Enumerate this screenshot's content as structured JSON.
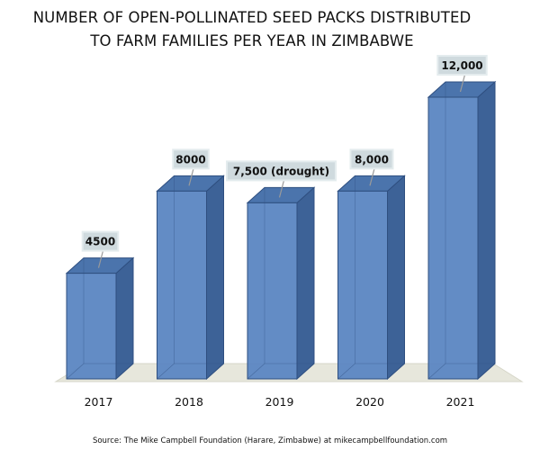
{
  "title_line1": "NUMBER OF OPEN-POLLINATED SEED PACKS DISTRIBUTED",
  "title_line2": "TO FARM FAMILIES PER YEAR IN ZIMBABWE",
  "source": "Source: The Mike Campbell Foundation (Harare, Zimbabwe) at mikecampbellfoundation.com",
  "colors": {
    "bar_front": "#5b86c2",
    "bar_side": "#3d6297",
    "bar_top": "#4b74ac",
    "bar_edge": "#2f4f80",
    "floor": "#e7e7dc",
    "label_box": "#cfdade",
    "label_border": "#e4ecee"
  },
  "chart_data": {
    "type": "bar",
    "style": "3d-column",
    "categories": [
      "2017",
      "2018",
      "2019",
      "2020",
      "2021"
    ],
    "values": [
      4500,
      8000,
      7500,
      8000,
      12000
    ],
    "data_labels": [
      "4500",
      "8000",
      "7,500 (drought)",
      "8,000",
      "12,000"
    ],
    "ylim": [
      0,
      12000
    ],
    "grid": false,
    "legend": "none"
  }
}
